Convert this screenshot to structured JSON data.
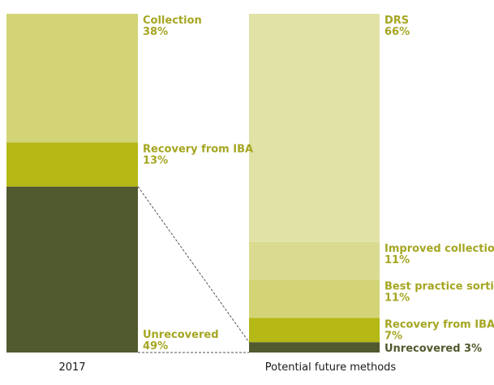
{
  "chart_data": {
    "type": "bar",
    "stacked": true,
    "percent": true,
    "title": "",
    "xlabel": "",
    "ylabel": "",
    "categories": [
      "2017",
      "Potential future methods"
    ],
    "bars": [
      {
        "category": "2017",
        "segments": [
          {
            "name": "Unrecovered",
            "value": 49,
            "label": "49%",
            "color": "#515a2e"
          },
          {
            "name": "Recovery from IBA",
            "value": 13,
            "label": "13%",
            "color": "#b5b815"
          },
          {
            "name": "Collection",
            "value": 38,
            "label": "38%",
            "color": "#d2d476"
          }
        ]
      },
      {
        "category": "Potential future methods",
        "segments": [
          {
            "name": "Unrecovered",
            "value": 3,
            "label": "3%",
            "color": "#515a2e"
          },
          {
            "name": "Recovery from IBA",
            "value": 7,
            "label": "7%",
            "color": "#b5b815"
          },
          {
            "name": "Best practice sorting",
            "value": 11,
            "label": "11%",
            "color": "#d2d476"
          },
          {
            "name": "Improved collection",
            "value": 11,
            "label": "11%",
            "color": "#dadb90"
          },
          {
            "name": "DRS",
            "value": 66,
            "label": "66%",
            "color": "#e1e2a5"
          }
        ]
      }
    ],
    "connector": {
      "from": "2017",
      "segment": "Unrecovered",
      "to": "Potential future methods",
      "style": "dashed",
      "color": "#555555"
    },
    "label_color": "#a5a622"
  }
}
